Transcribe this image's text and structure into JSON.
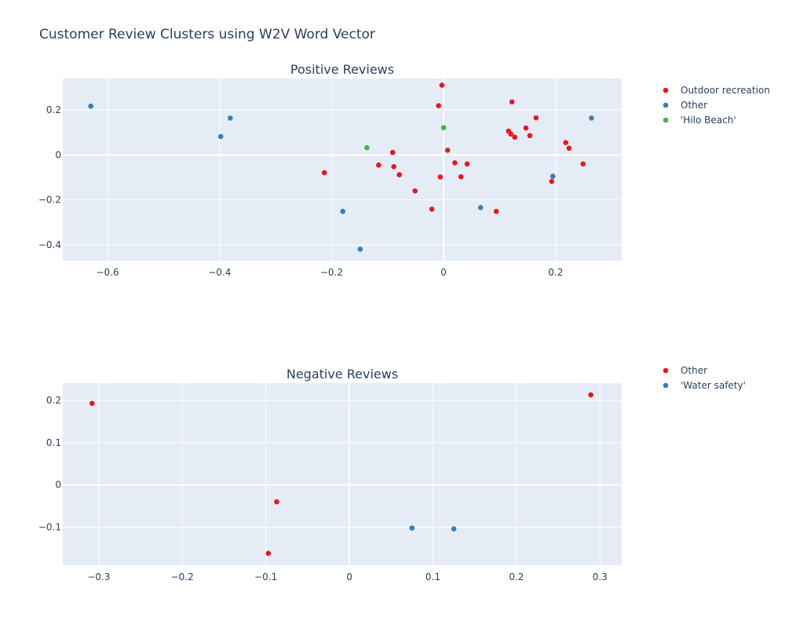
{
  "figure": {
    "title": "Customer Review Clusters using W2V Word Vector"
  },
  "chart_data": [
    {
      "type": "scatter",
      "title": "Positive Reviews",
      "xlabel": "",
      "ylabel": "",
      "xlim": [
        -0.68,
        0.318
      ],
      "ylim": [
        -0.47,
        0.34
      ],
      "xticks": [
        -0.6,
        -0.4,
        -0.2,
        0,
        0.2
      ],
      "xtick_labels": [
        "−0.6",
        "−0.4",
        "−0.2",
        "0",
        "0.2"
      ],
      "yticks": [
        -0.4,
        -0.2,
        0,
        0.2
      ],
      "ytick_labels": [
        "−0.4",
        "−0.2",
        "0",
        "0.2"
      ],
      "grid": true,
      "legend_position": "right",
      "series": [
        {
          "name": "Outdoor recreation",
          "color": "#e41a1c",
          "points": [
            [
              -0.213,
              -0.079
            ],
            [
              -0.116,
              -0.045
            ],
            [
              -0.091,
              0.011
            ],
            [
              -0.089,
              -0.052
            ],
            [
              -0.079,
              -0.088
            ],
            [
              -0.051,
              -0.16
            ],
            [
              -0.021,
              -0.241
            ],
            [
              -0.009,
              0.219
            ],
            [
              -0.006,
              -0.098
            ],
            [
              -0.003,
              0.31
            ],
            [
              0.007,
              0.021
            ],
            [
              0.02,
              -0.035
            ],
            [
              0.031,
              -0.097
            ],
            [
              0.042,
              -0.04
            ],
            [
              0.094,
              -0.251
            ],
            [
              0.116,
              0.106
            ],
            [
              0.12,
              0.093
            ],
            [
              0.122,
              0.236
            ],
            [
              0.127,
              0.079
            ],
            [
              0.147,
              0.12
            ],
            [
              0.154,
              0.086
            ],
            [
              0.165,
              0.165
            ],
            [
              0.193,
              -0.118
            ],
            [
              0.218,
              0.055
            ],
            [
              0.224,
              0.03
            ],
            [
              0.249,
              -0.04
            ]
          ]
        },
        {
          "name": "Other",
          "color": "#377eb8",
          "points": [
            [
              -0.63,
              0.217
            ],
            [
              -0.398,
              0.082
            ],
            [
              -0.381,
              0.164
            ],
            [
              -0.18,
              -0.251
            ],
            [
              -0.149,
              -0.419
            ],
            [
              0.066,
              -0.234
            ],
            [
              0.195,
              -0.095
            ],
            [
              0.264,
              0.164
            ]
          ]
        },
        {
          "name": "'Hilo Beach'",
          "color": "#4daf4a",
          "points": [
            [
              -0.137,
              0.032
            ],
            [
              0.0,
              0.121
            ]
          ]
        }
      ]
    },
    {
      "type": "scatter",
      "title": "Negative Reviews",
      "xlabel": "",
      "ylabel": "",
      "xlim": [
        -0.343,
        0.326
      ],
      "ylim": [
        -0.19,
        0.241
      ],
      "xticks": [
        -0.3,
        -0.2,
        -0.1,
        0,
        0.1,
        0.2,
        0.3
      ],
      "xtick_labels": [
        "−0.3",
        "−0.2",
        "−0.1",
        "0",
        "0.1",
        "0.2",
        "0.3"
      ],
      "yticks": [
        -0.1,
        0,
        0.1,
        0.2
      ],
      "ytick_labels": [
        "−0.1",
        "0",
        "0.1",
        "0.2"
      ],
      "grid": true,
      "legend_position": "right",
      "series": [
        {
          "name": "Other",
          "color": "#e41a1c",
          "points": [
            [
              -0.308,
              0.193
            ],
            [
              -0.087,
              -0.04
            ],
            [
              -0.097,
              -0.162
            ],
            [
              0.289,
              0.213
            ]
          ]
        },
        {
          "name": "'Water safety'",
          "color": "#377eb8",
          "points": [
            [
              0.075,
              -0.102
            ],
            [
              0.125,
              -0.104
            ]
          ]
        }
      ]
    }
  ]
}
